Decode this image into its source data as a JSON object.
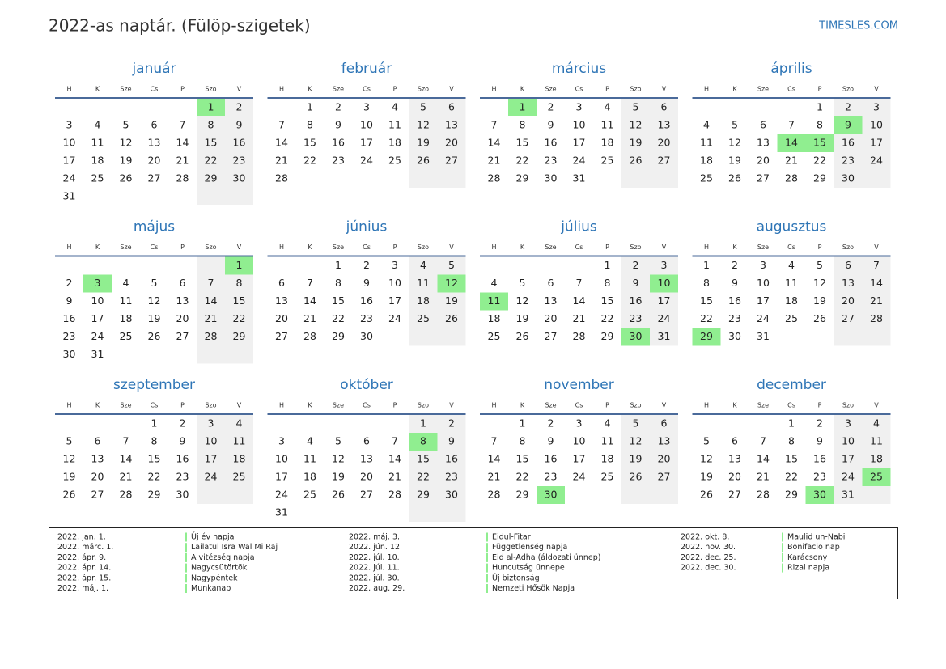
{
  "header": {
    "title": "2022-as naptár. (Fülöp-szigetek)",
    "site": "TIMESLES.COM"
  },
  "weekdays": [
    "H",
    "K",
    "Sze",
    "Cs",
    "P",
    "Szo",
    "V"
  ],
  "months": [
    {
      "name": "január",
      "holidays": [
        1
      ],
      "cells": [
        null,
        null,
        null,
        null,
        null,
        1,
        2,
        3,
        4,
        5,
        6,
        7,
        8,
        9,
        10,
        11,
        12,
        13,
        14,
        15,
        16,
        17,
        18,
        19,
        20,
        21,
        22,
        23,
        24,
        25,
        26,
        27,
        28,
        29,
        30,
        31
      ]
    },
    {
      "name": "február",
      "holidays": [],
      "cells": [
        null,
        1,
        2,
        3,
        4,
        5,
        6,
        7,
        8,
        9,
        10,
        11,
        12,
        13,
        14,
        15,
        16,
        17,
        18,
        19,
        20,
        21,
        22,
        23,
        24,
        25,
        26,
        27,
        28
      ]
    },
    {
      "name": "március",
      "holidays": [
        1
      ],
      "cells": [
        null,
        1,
        2,
        3,
        4,
        5,
        6,
        7,
        8,
        9,
        10,
        11,
        12,
        13,
        14,
        15,
        16,
        17,
        18,
        19,
        20,
        21,
        22,
        23,
        24,
        25,
        26,
        27,
        28,
        29,
        30,
        31
      ]
    },
    {
      "name": "április",
      "holidays": [
        9,
        14,
        15
      ],
      "cells": [
        null,
        null,
        null,
        null,
        1,
        2,
        3,
        4,
        5,
        6,
        7,
        8,
        9,
        10,
        11,
        12,
        13,
        14,
        15,
        16,
        17,
        18,
        19,
        20,
        21,
        22,
        23,
        24,
        25,
        26,
        27,
        28,
        29,
        30
      ]
    },
    {
      "name": "május",
      "holidays": [
        1,
        3
      ],
      "cells": [
        null,
        null,
        null,
        null,
        null,
        null,
        1,
        2,
        3,
        4,
        5,
        6,
        7,
        8,
        9,
        10,
        11,
        12,
        13,
        14,
        15,
        16,
        17,
        18,
        19,
        20,
        21,
        22,
        23,
        24,
        25,
        26,
        27,
        28,
        29,
        30,
        31
      ]
    },
    {
      "name": "június",
      "holidays": [
        12
      ],
      "cells": [
        null,
        null,
        1,
        2,
        3,
        4,
        5,
        6,
        7,
        8,
        9,
        10,
        11,
        12,
        13,
        14,
        15,
        16,
        17,
        18,
        19,
        20,
        21,
        22,
        23,
        24,
        25,
        26,
        27,
        28,
        29,
        30
      ]
    },
    {
      "name": "július",
      "holidays": [
        10,
        11,
        30
      ],
      "cells": [
        null,
        null,
        null,
        null,
        1,
        2,
        3,
        4,
        5,
        6,
        7,
        8,
        9,
        10,
        11,
        12,
        13,
        14,
        15,
        16,
        17,
        18,
        19,
        20,
        21,
        22,
        23,
        24,
        25,
        26,
        27,
        28,
        29,
        30,
        31
      ]
    },
    {
      "name": "augusztus",
      "holidays": [
        29
      ],
      "cells": [
        1,
        2,
        3,
        4,
        5,
        6,
        7,
        8,
        9,
        10,
        11,
        12,
        13,
        14,
        15,
        16,
        17,
        18,
        19,
        20,
        21,
        22,
        23,
        24,
        25,
        26,
        27,
        28,
        29,
        30,
        31
      ]
    },
    {
      "name": "szeptember",
      "holidays": [],
      "cells": [
        null,
        null,
        null,
        1,
        2,
        3,
        4,
        5,
        6,
        7,
        8,
        9,
        10,
        11,
        12,
        13,
        14,
        15,
        16,
        17,
        18,
        19,
        20,
        21,
        22,
        23,
        24,
        25,
        26,
        27,
        28,
        29,
        30
      ]
    },
    {
      "name": "október",
      "holidays": [
        8
      ],
      "cells": [
        null,
        null,
        null,
        null,
        null,
        1,
        2,
        3,
        4,
        5,
        6,
        7,
        8,
        9,
        10,
        11,
        12,
        13,
        14,
        15,
        16,
        17,
        18,
        19,
        20,
        21,
        22,
        23,
        24,
        25,
        26,
        27,
        28,
        29,
        30,
        31
      ]
    },
    {
      "name": "november",
      "holidays": [
        30
      ],
      "cells": [
        null,
        1,
        2,
        3,
        4,
        5,
        6,
        7,
        8,
        9,
        10,
        11,
        12,
        13,
        14,
        15,
        16,
        17,
        18,
        19,
        20,
        21,
        22,
        23,
        24,
        25,
        26,
        27,
        28,
        29,
        30
      ]
    },
    {
      "name": "december",
      "holidays": [
        25,
        30
      ],
      "cells": [
        null,
        null,
        null,
        1,
        2,
        3,
        4,
        5,
        6,
        7,
        8,
        9,
        10,
        11,
        12,
        13,
        14,
        15,
        16,
        17,
        18,
        19,
        20,
        21,
        22,
        23,
        24,
        25,
        26,
        27,
        28,
        29,
        30,
        31
      ]
    }
  ],
  "holiday_list": [
    {
      "date": "2022. jan. 1.",
      "name": "Új év napja"
    },
    {
      "date": "2022. márc. 1.",
      "name": "Lailatul Isra Wal Mi Raj"
    },
    {
      "date": "2022. ápr. 9.",
      "name": "A vitézség napja"
    },
    {
      "date": "2022. ápr. 14.",
      "name": "Nagycsütörtök"
    },
    {
      "date": "2022. ápr. 15.",
      "name": "Nagypéntek"
    },
    {
      "date": "2022. máj. 1.",
      "name": "Munkanap"
    },
    {
      "date": "2022. máj. 3.",
      "name": "Eidul-Fitar"
    },
    {
      "date": "2022. jún. 12.",
      "name": "Függetlenség napja"
    },
    {
      "date": "2022. júl. 10.",
      "name": "Eid al-Adha (áldozati ünnep)"
    },
    {
      "date": "2022. júl. 11.",
      "name": "Huncutság ünnepe"
    },
    {
      "date": "2022. júl. 30.",
      "name": "Új biztonság"
    },
    {
      "date": "2022. aug. 29.",
      "name": "Nemzeti Hősök Napja"
    },
    {
      "date": "2022. okt. 8.",
      "name": "Maulid un-Nabi"
    },
    {
      "date": "2022. nov. 30.",
      "name": "Bonifacio nap"
    },
    {
      "date": "2022. dec. 25.",
      "name": "Karácsony"
    },
    {
      "date": "2022. dec. 30.",
      "name": "Rizal napja"
    }
  ]
}
